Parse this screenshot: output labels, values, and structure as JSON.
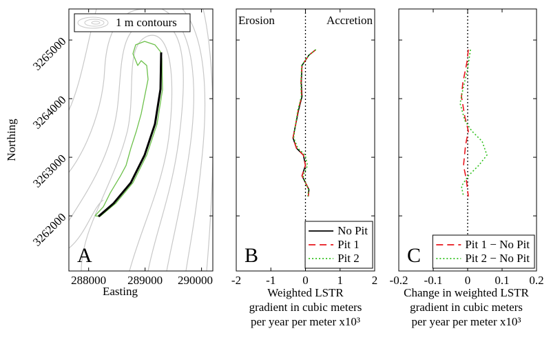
{
  "chart_data": [
    {
      "type": "map",
      "panel_label": "A",
      "xlabel": "Easting",
      "ylabel": "Northing",
      "xlim": [
        287650,
        290200
      ],
      "xticks": [
        288000,
        289000,
        290000
      ],
      "ylim": [
        3261060,
        3265530
      ],
      "yticks": [
        3262000,
        3263000,
        3264000,
        3265000
      ],
      "legend_label": "1 m contours",
      "contour_color": "#c8c8c8",
      "series": [
        {
          "color": "#6cc04a",
          "x": [
            288114,
            288260,
            288382,
            288565,
            288663,
            288748,
            288846,
            288931,
            288992,
            289053,
            289029,
            288931,
            288870,
            288785,
            288833,
            288992,
            289175,
            289273,
            289297,
            289309,
            289212,
            289029,
            288785,
            288480,
            288199,
            288114
          ],
          "y": [
            3262002,
            3262155,
            3262390,
            3262684,
            3262861,
            3263155,
            3263448,
            3263742,
            3264036,
            3264330,
            3264566,
            3264648,
            3264566,
            3264766,
            3264918,
            3264977,
            3264918,
            3264801,
            3264683,
            3264154,
            3263566,
            3263037,
            3262566,
            3262214,
            3261990,
            3262002
          ]
        },
        {
          "color": "#000000",
          "x": [
            288175,
            288443,
            288748,
            288992,
            289175,
            289273,
            289285
          ],
          "y": [
            3261990,
            3262214,
            3262566,
            3263037,
            3263566,
            3264161,
            3264789
          ]
        }
      ]
    },
    {
      "type": "profile",
      "panel_label": "B",
      "annotations": [
        "Erosion",
        "Accretion"
      ],
      "xlabel": [
        "Weighted LSTR",
        "gradient in cubic meters",
        "per year per meter x10³"
      ],
      "xlim": [
        -2,
        2
      ],
      "xticks": [
        -2,
        -1,
        0,
        1,
        2
      ],
      "ylim": [
        3261060,
        3265530
      ],
      "yticks": [
        3262000,
        3263000,
        3264000,
        3265000
      ],
      "zero_line": true,
      "legend": "lower right",
      "series": [
        {
          "name": "No Pit",
          "color": "#000000",
          "dash": "none",
          "northing": [
            3264836,
            3264742,
            3264566,
            3264272,
            3264036,
            3263801,
            3263507,
            3263331,
            3263155,
            3263037,
            3262861,
            3262684,
            3262566,
            3262449,
            3262331
          ],
          "values": [
            0.3,
            0.1,
            -0.1,
            -0.12,
            -0.1,
            -0.2,
            -0.3,
            -0.36,
            -0.26,
            -0.06,
            0,
            -0.1,
            0,
            0.1,
            0.08
          ]
        },
        {
          "name": "Pit 1",
          "color": "#e8141b",
          "dash": "10,6",
          "northing": [
            3264836,
            3264742,
            3264566,
            3264272,
            3264036,
            3263801,
            3263507,
            3263331,
            3263155,
            3263037,
            3262861,
            3262684,
            3262566,
            3262449,
            3262331
          ],
          "values": [
            0.3,
            0.1,
            -0.1,
            -0.13,
            -0.11,
            -0.21,
            -0.3,
            -0.36,
            -0.26,
            -0.06,
            0,
            -0.1,
            0,
            0.1,
            0.08
          ]
        },
        {
          "name": "Pit 2",
          "color": "#2ec01b",
          "dash": "2,3",
          "northing": [
            3264836,
            3264742,
            3264566,
            3264272,
            3264036,
            3263801,
            3263507,
            3263331,
            3263155,
            3263037,
            3262861,
            3262684,
            3262566,
            3262449,
            3262331
          ],
          "values": [
            0.3,
            0.1,
            -0.11,
            -0.13,
            -0.12,
            -0.22,
            -0.3,
            -0.34,
            -0.22,
            -0.01,
            0.06,
            -0.07,
            0,
            0.09,
            0.07
          ]
        }
      ]
    },
    {
      "type": "profile",
      "panel_label": "C",
      "xlabel": [
        "Change in weighted LSTR",
        "gradient in cubic meters",
        "per year per meter x10³"
      ],
      "xlim": [
        -0.2,
        0.2
      ],
      "xticks": [
        -0.2,
        -0.1,
        0,
        0.1,
        0.2
      ],
      "ylim": [
        3261060,
        3265530
      ],
      "yticks": [
        3262000,
        3263000,
        3264000,
        3265000
      ],
      "zero_line": true,
      "legend": "lower right",
      "series": [
        {
          "name": "Pit 1 − No Pit",
          "color": "#e8141b",
          "dash": "10,6",
          "northing": [
            3264836,
            3264625,
            3264272,
            3264036,
            3263684,
            3263448,
            3263213,
            3262860,
            3262625,
            3262331
          ],
          "values": [
            0.002,
            -0.002,
            -0.014,
            -0.018,
            -0.008,
            0.002,
            -0.006,
            -0.012,
            -0.004,
            0.002
          ]
        },
        {
          "name": "Pit 2 − No Pit",
          "color": "#2ec01b",
          "dash": "2,3",
          "northing": [
            3264836,
            3264507,
            3264154,
            3263919,
            3263625,
            3263448,
            3263272,
            3263037,
            3262860,
            3262684,
            3262507,
            3262331
          ],
          "values": [
            0.008,
            0,
            -0.014,
            -0.022,
            -0.008,
            0.012,
            0.042,
            0.056,
            0.032,
            0.002,
            -0.018,
            -0.012
          ]
        }
      ]
    }
  ]
}
